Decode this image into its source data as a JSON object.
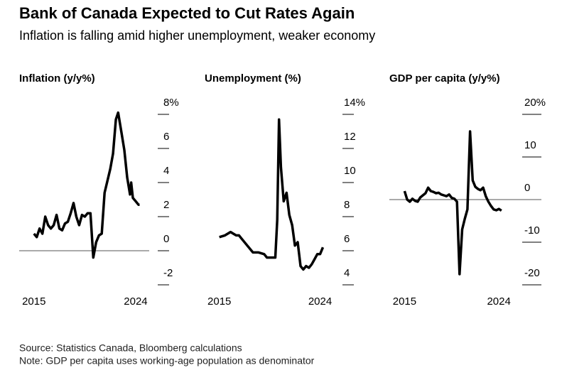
{
  "title": "Bank of Canada Expected to Cut Rates Again",
  "subtitle": "Inflation is falling amid higher unemployment, weaker economy",
  "source": "Source: Statistics Canada, Bloomberg calculations",
  "note": "Note: GDP per capita uses working-age population as denominator",
  "chart_data": [
    {
      "type": "line",
      "title": "Inflation (y/y%)",
      "color": "#000000",
      "zero_line": true,
      "x": [
        2015.0,
        2015.25,
        2015.5,
        2015.75,
        2016.0,
        2016.25,
        2016.5,
        2016.75,
        2017.0,
        2017.25,
        2017.5,
        2017.75,
        2018.0,
        2018.25,
        2018.5,
        2018.75,
        2019.0,
        2019.25,
        2019.5,
        2019.75,
        2020.0,
        2020.25,
        2020.5,
        2020.75,
        2021.0,
        2021.25,
        2021.5,
        2021.75,
        2022.0,
        2022.25,
        2022.45,
        2022.75,
        2023.0,
        2023.25,
        2023.5,
        2023.6,
        2023.75,
        2024.0,
        2024.25,
        2024.35
      ],
      "values": [
        1.0,
        0.8,
        1.3,
        1.0,
        2.0,
        1.5,
        1.3,
        1.5,
        2.1,
        1.3,
        1.2,
        1.6,
        1.7,
        2.2,
        2.8,
        2.0,
        1.5,
        2.1,
        2.0,
        2.2,
        2.2,
        -0.4,
        0.5,
        0.9,
        1.0,
        3.4,
        4.1,
        4.8,
        5.7,
        7.7,
        8.1,
        6.9,
        5.9,
        4.3,
        3.3,
        4.0,
        3.1,
        2.9,
        2.7,
        2.7
      ],
      "xlim": [
        2014.7,
        2024.6
      ],
      "xticks": [
        2015,
        2024
      ],
      "ylim": [
        -2,
        8
      ],
      "yticks": [
        {
          "value": 8,
          "label": "8%"
        },
        6,
        4,
        2,
        0,
        -2
      ]
    },
    {
      "type": "line",
      "title": "Unemployment (%)",
      "color": "#000000",
      "zero_line": false,
      "x": [
        2015.0,
        2015.5,
        2016.0,
        2016.25,
        2016.5,
        2016.75,
        2017.0,
        2017.5,
        2018.0,
        2018.5,
        2019.0,
        2019.25,
        2019.5,
        2019.75,
        2020.0,
        2020.17,
        2020.33,
        2020.5,
        2020.75,
        2021.0,
        2021.25,
        2021.5,
        2021.75,
        2022.0,
        2022.25,
        2022.5,
        2022.75,
        2023.0,
        2023.25,
        2023.5,
        2023.75,
        2024.0,
        2024.25
      ],
      "values": [
        6.8,
        6.9,
        7.1,
        7.0,
        6.9,
        6.9,
        6.7,
        6.3,
        5.9,
        5.9,
        5.8,
        5.6,
        5.6,
        5.6,
        5.6,
        7.8,
        13.7,
        10.9,
        8.9,
        9.4,
        8.1,
        7.5,
        6.3,
        6.5,
        5.1,
        4.9,
        5.1,
        5.0,
        5.2,
        5.5,
        5.8,
        5.8,
        6.2
      ],
      "xlim": [
        2014.7,
        2024.6
      ],
      "xticks": [
        2015,
        2024
      ],
      "ylim": [
        4,
        14
      ],
      "yticks": [
        {
          "value": 14,
          "label": "14%"
        },
        12,
        10,
        8,
        6,
        4
      ]
    },
    {
      "type": "line",
      "title": "GDP per capita (y/y%)",
      "color": "#000000",
      "zero_line": true,
      "x": [
        2015.0,
        2015.25,
        2015.5,
        2015.75,
        2016.0,
        2016.25,
        2016.5,
        2016.75,
        2017.0,
        2017.25,
        2017.5,
        2017.75,
        2018.0,
        2018.25,
        2018.5,
        2018.75,
        2019.0,
        2019.25,
        2019.5,
        2019.75,
        2020.0,
        2020.25,
        2020.5,
        2020.75,
        2021.0,
        2021.25,
        2021.5,
        2021.75,
        2022.0,
        2022.25,
        2022.5,
        2022.75,
        2023.0,
        2023.25,
        2023.5,
        2023.75,
        2024.0,
        2024.25
      ],
      "values": [
        2.0,
        0.0,
        -0.5,
        0.2,
        -0.3,
        -0.5,
        0.5,
        1.0,
        1.5,
        2.8,
        2.0,
        1.8,
        1.5,
        1.6,
        1.2,
        1.0,
        0.8,
        1.2,
        0.4,
        0.2,
        -0.5,
        -17.5,
        -7.0,
        -4.5,
        -2.3,
        16.0,
        4.5,
        3.0,
        2.5,
        2.2,
        2.8,
        0.8,
        -0.5,
        -1.5,
        -2.3,
        -2.5,
        -2.2,
        -2.6
      ],
      "xlim": [
        2014.7,
        2024.6
      ],
      "xticks": [
        2015,
        2024
      ],
      "ylim": [
        -20,
        20
      ],
      "yticks": [
        {
          "value": 20,
          "label": "20%"
        },
        10,
        0,
        -10,
        -20
      ]
    }
  ]
}
